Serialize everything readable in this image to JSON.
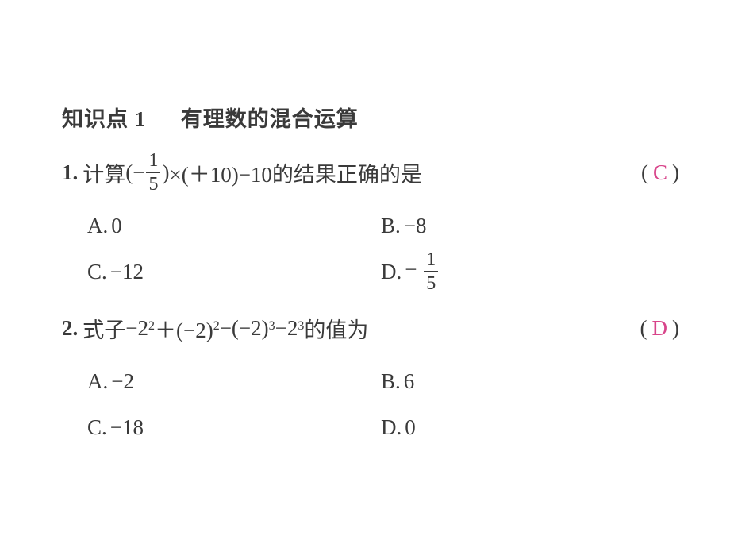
{
  "heading": {
    "prefix": "知识点",
    "number": "1",
    "title": "有理数的混合运算"
  },
  "answer_color": "#d8448a",
  "text_color": "#3a3a3a",
  "q1": {
    "number": "1.",
    "pre": "计算",
    "lpar": "(",
    "minus1": "−",
    "frac_num": "1",
    "frac_den": "5",
    "rpar": ")",
    "mid": "×(＋10)−10",
    "tail": " 的结果正确的是",
    "answer": "C",
    "options": {
      "A": {
        "label": "A.",
        "text": "0"
      },
      "B": {
        "label": "B.",
        "text": "−8"
      },
      "C": {
        "label": "C.",
        "text": "−12"
      },
      "D": {
        "label": "D.",
        "prefix": "−",
        "frac_num": "1",
        "frac_den": "5"
      }
    }
  },
  "q2": {
    "number": "2.",
    "pre": "式子",
    "t1": "−2",
    "e1": "2",
    "t2": "＋(−2)",
    "e2": "2",
    "t3": "−(−2)",
    "e3": "3",
    "t4": "−2",
    "e4": "3",
    "tail": " 的值为",
    "answer": "D",
    "options": {
      "A": {
        "label": "A.",
        "text": "−2"
      },
      "B": {
        "label": "B.",
        "text": "6"
      },
      "C": {
        "label": "C.",
        "text": "−18"
      },
      "D": {
        "label": "D.",
        "text": "0"
      }
    }
  }
}
